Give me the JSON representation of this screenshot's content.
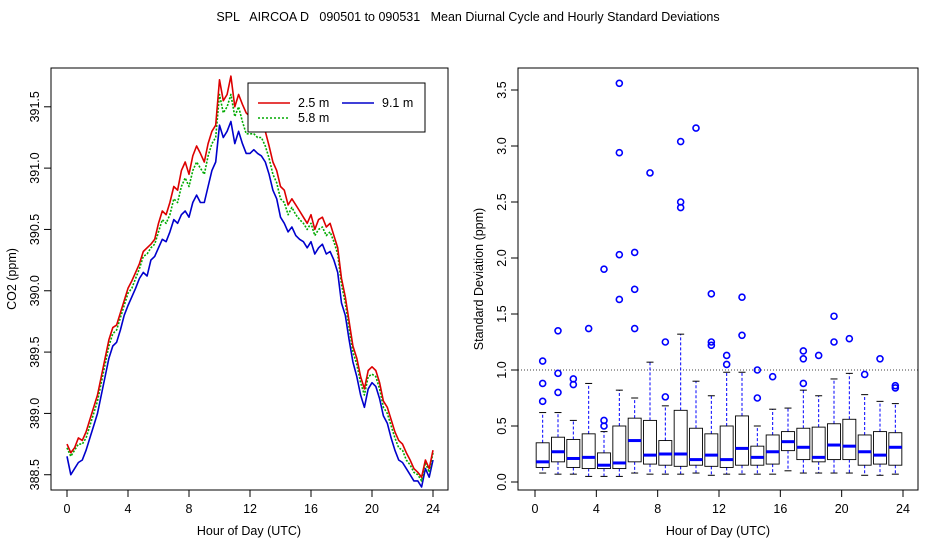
{
  "page_title": "SPL   AIRCOA D   090501 to 090531   Mean Diurnal Cycle and Hourly Standard Deviations",
  "chart_data": [
    {
      "type": "line",
      "xlabel": "Hour of Day (UTC)",
      "ylabel": "CO2 (ppm)",
      "xlim": [
        0,
        24
      ],
      "ylim": [
        388.4,
        391.8
      ],
      "xticks": [
        "0",
        "4",
        "8",
        "12",
        "16",
        "20",
        "24"
      ],
      "yticks": [
        "388.5",
        "389.0",
        "389.5",
        "390.0",
        "390.5",
        "391.0",
        "391.5"
      ],
      "legend_position": "top-right",
      "x": [
        0,
        0.25,
        0.5,
        0.75,
        1,
        1.25,
        1.5,
        1.75,
        2,
        2.25,
        2.5,
        2.75,
        3,
        3.25,
        3.5,
        3.75,
        4,
        4.25,
        4.5,
        4.75,
        5,
        5.25,
        5.5,
        5.75,
        6,
        6.25,
        6.5,
        6.75,
        7,
        7.25,
        7.5,
        7.75,
        8,
        8.25,
        8.5,
        8.75,
        9,
        9.25,
        9.5,
        9.75,
        10,
        10.25,
        10.5,
        10.75,
        11,
        11.25,
        11.5,
        11.75,
        12,
        12.25,
        12.5,
        12.75,
        13,
        13.25,
        13.5,
        13.75,
        14,
        14.25,
        14.5,
        14.75,
        15,
        15.25,
        15.5,
        15.75,
        16,
        16.25,
        16.5,
        16.75,
        17,
        17.25,
        17.5,
        17.75,
        18,
        18.25,
        18.5,
        18.75,
        19,
        19.25,
        19.5,
        19.75,
        20,
        20.25,
        20.5,
        20.75,
        21,
        21.25,
        21.5,
        21.75,
        22,
        22.25,
        22.5,
        22.75,
        23,
        23.25,
        23.5,
        23.75,
        24
      ],
      "series": [
        {
          "name": "2.5 m",
          "color": "#dd0000",
          "values": [
            388.75,
            388.68,
            388.72,
            388.8,
            388.78,
            388.85,
            388.95,
            389.05,
            389.15,
            389.3,
            389.45,
            389.6,
            389.7,
            389.72,
            389.82,
            389.92,
            390.02,
            390.08,
            390.15,
            390.22,
            390.32,
            390.35,
            390.38,
            390.42,
            390.55,
            390.65,
            390.62,
            390.72,
            390.85,
            390.82,
            390.98,
            391.05,
            390.95,
            391.1,
            391.18,
            391.12,
            391.05,
            391.2,
            391.3,
            391.35,
            391.72,
            391.55,
            391.6,
            391.75,
            391.5,
            391.6,
            391.52,
            391.45,
            391.42,
            391.45,
            391.4,
            391.38,
            391.3,
            391.18,
            391.05,
            390.98,
            390.85,
            390.82,
            390.7,
            390.75,
            390.7,
            390.65,
            390.6,
            390.55,
            390.62,
            390.5,
            390.58,
            390.6,
            390.52,
            390.55,
            390.45,
            390.35,
            390.1,
            389.95,
            389.75,
            389.55,
            389.45,
            389.3,
            389.2,
            389.35,
            389.38,
            389.35,
            389.25,
            389.1,
            389.05,
            388.95,
            388.85,
            388.78,
            388.75,
            388.68,
            388.62,
            388.55,
            388.52,
            388.48,
            388.62,
            388.55,
            388.7
          ]
        },
        {
          "name": "5.8 m",
          "color": "#00aa00",
          "dashed": true,
          "values": [
            388.72,
            388.65,
            388.7,
            388.75,
            388.75,
            388.8,
            388.9,
            389.0,
            389.1,
            389.25,
            389.4,
            389.55,
            389.65,
            389.68,
            389.78,
            389.88,
            389.98,
            390.02,
            390.1,
            390.18,
            390.28,
            390.3,
            390.35,
            390.38,
            390.48,
            390.58,
            390.55,
            390.62,
            390.75,
            390.72,
            390.85,
            390.92,
            390.85,
            390.98,
            391.05,
            391.0,
            390.95,
            391.1,
            391.2,
            391.25,
            391.6,
            391.45,
            391.5,
            391.6,
            391.42,
            391.5,
            391.38,
            391.28,
            391.28,
            391.28,
            391.25,
            391.25,
            391.18,
            391.08,
            390.95,
            390.88,
            390.75,
            390.72,
            390.62,
            390.68,
            390.62,
            390.58,
            390.55,
            390.5,
            390.55,
            390.45,
            390.5,
            390.52,
            390.45,
            390.48,
            390.4,
            390.3,
            390.05,
            389.9,
            389.7,
            389.5,
            389.4,
            389.25,
            389.15,
            389.3,
            389.32,
            389.3,
            389.2,
            389.05,
            389.0,
            388.9,
            388.8,
            388.72,
            388.7,
            388.62,
            388.58,
            388.52,
            388.5,
            388.45,
            388.6,
            388.52,
            388.68
          ]
        },
        {
          "name": "9.1 m",
          "color": "#0000cc",
          "values": [
            388.65,
            388.5,
            388.55,
            388.6,
            388.62,
            388.7,
            388.8,
            388.9,
            389.0,
            389.15,
            389.3,
            389.45,
            389.55,
            389.58,
            389.68,
            389.8,
            389.88,
            389.95,
            390.02,
            390.1,
            390.15,
            390.12,
            390.25,
            390.28,
            390.35,
            390.42,
            390.4,
            390.48,
            390.58,
            390.55,
            390.62,
            390.65,
            390.6,
            390.72,
            390.78,
            390.72,
            390.72,
            390.85,
            390.98,
            391.05,
            391.35,
            391.25,
            391.3,
            391.38,
            391.2,
            391.3,
            391.2,
            391.12,
            391.12,
            391.15,
            391.12,
            391.1,
            391.05,
            390.95,
            390.82,
            390.75,
            390.6,
            390.55,
            390.48,
            390.52,
            390.45,
            390.42,
            390.4,
            390.35,
            390.4,
            390.3,
            390.35,
            390.38,
            390.3,
            390.32,
            390.25,
            390.15,
            389.9,
            389.8,
            389.6,
            389.42,
            389.3,
            389.15,
            389.05,
            389.2,
            389.25,
            389.22,
            389.12,
            388.98,
            388.92,
            388.8,
            388.7,
            388.62,
            388.6,
            388.55,
            388.5,
            388.45,
            388.45,
            388.4,
            388.55,
            388.48,
            388.62
          ]
        }
      ]
    },
    {
      "type": "box",
      "xlabel": "Hour of Day (UTC)",
      "ylabel": "Standard Deviation (ppm)",
      "xlim": [
        0,
        24
      ],
      "ylim": [
        0,
        3.55
      ],
      "xticks": [
        "0",
        "4",
        "8",
        "12",
        "16",
        "20",
        "24"
      ],
      "yticks": [
        "0.0",
        "0.5",
        "1.0",
        "1.5",
        "2.0",
        "2.5",
        "3.0",
        "3.5"
      ],
      "reference_line": 1.0,
      "boxes": [
        {
          "hour": 0.5,
          "whislo": 0.08,
          "q1": 0.13,
          "med": 0.18,
          "q3": 0.35,
          "whishi": 0.62,
          "outliers": [
            0.72,
            0.88,
            1.08
          ]
        },
        {
          "hour": 1.5,
          "whislo": 0.07,
          "q1": 0.18,
          "med": 0.27,
          "q3": 0.4,
          "whishi": 0.62,
          "outliers": [
            0.8,
            0.97,
            1.35
          ]
        },
        {
          "hour": 2.5,
          "whislo": 0.07,
          "q1": 0.13,
          "med": 0.21,
          "q3": 0.38,
          "whishi": 0.55,
          "outliers": [
            0.87,
            0.92
          ]
        },
        {
          "hour": 3.5,
          "whislo": 0.05,
          "q1": 0.12,
          "med": 0.22,
          "q3": 0.43,
          "whishi": 0.88,
          "outliers": [
            1.37
          ]
        },
        {
          "hour": 4.5,
          "whislo": 0.05,
          "q1": 0.12,
          "med": 0.15,
          "q3": 0.26,
          "whishi": 0.45,
          "outliers": [
            0.5,
            0.55,
            1.9
          ]
        },
        {
          "hour": 5.5,
          "whislo": 0.05,
          "q1": 0.12,
          "med": 0.17,
          "q3": 0.5,
          "whishi": 0.82,
          "outliers": [
            1.63,
            2.03,
            2.94,
            3.56
          ]
        },
        {
          "hour": 6.5,
          "whislo": 0.08,
          "q1": 0.18,
          "med": 0.37,
          "q3": 0.57,
          "whishi": 0.75,
          "outliers": [
            1.37,
            1.72,
            2.05
          ]
        },
        {
          "hour": 7.5,
          "whislo": 0.07,
          "q1": 0.16,
          "med": 0.24,
          "q3": 0.55,
          "whishi": 1.07,
          "outliers": [
            2.76
          ]
        },
        {
          "hour": 8.5,
          "whislo": 0.07,
          "q1": 0.15,
          "med": 0.25,
          "q3": 0.37,
          "whishi": 0.68,
          "outliers": [
            0.76,
            1.25
          ]
        },
        {
          "hour": 9.5,
          "whislo": 0.07,
          "q1": 0.14,
          "med": 0.25,
          "q3": 0.64,
          "whishi": 1.32,
          "outliers": [
            2.45,
            2.5,
            3.04
          ]
        },
        {
          "hour": 10.5,
          "whislo": 0.08,
          "q1": 0.15,
          "med": 0.2,
          "q3": 0.48,
          "whishi": 0.9,
          "outliers": [
            3.16
          ]
        },
        {
          "hour": 11.5,
          "whislo": 0.06,
          "q1": 0.14,
          "med": 0.24,
          "q3": 0.43,
          "whishi": 0.77,
          "outliers": [
            1.22,
            1.25,
            1.68
          ]
        },
        {
          "hour": 12.5,
          "whislo": 0.07,
          "q1": 0.13,
          "med": 0.2,
          "q3": 0.5,
          "whishi": 0.98,
          "outliers": [
            1.05,
            1.13
          ]
        },
        {
          "hour": 13.5,
          "whislo": 0.07,
          "q1": 0.15,
          "med": 0.3,
          "q3": 0.59,
          "whishi": 0.98,
          "outliers": [
            1.31,
            1.65
          ]
        },
        {
          "hour": 14.5,
          "whislo": 0.07,
          "q1": 0.15,
          "med": 0.22,
          "q3": 0.32,
          "whishi": 0.5,
          "outliers": [
            0.75,
            1.0
          ]
        },
        {
          "hour": 15.5,
          "whislo": 0.07,
          "q1": 0.16,
          "med": 0.27,
          "q3": 0.42,
          "whishi": 0.65,
          "outliers": [
            0.94
          ]
        },
        {
          "hour": 16.5,
          "whislo": 0.1,
          "q1": 0.28,
          "med": 0.36,
          "q3": 0.45,
          "whishi": 0.66,
          "outliers": []
        },
        {
          "hour": 17.5,
          "whislo": 0.08,
          "q1": 0.2,
          "med": 0.31,
          "q3": 0.48,
          "whishi": 0.82,
          "outliers": [
            0.88,
            1.1,
            1.17
          ]
        },
        {
          "hour": 18.5,
          "whislo": 0.08,
          "q1": 0.18,
          "med": 0.22,
          "q3": 0.49,
          "whishi": 0.77,
          "outliers": [
            1.13
          ]
        },
        {
          "hour": 19.5,
          "whislo": 0.08,
          "q1": 0.2,
          "med": 0.33,
          "q3": 0.52,
          "whishi": 0.92,
          "outliers": [
            1.25,
            1.48
          ]
        },
        {
          "hour": 20.5,
          "whislo": 0.08,
          "q1": 0.2,
          "med": 0.32,
          "q3": 0.56,
          "whishi": 0.97,
          "outliers": [
            1.28
          ]
        },
        {
          "hour": 21.5,
          "whislo": 0.06,
          "q1": 0.15,
          "med": 0.27,
          "q3": 0.42,
          "whishi": 0.78,
          "outliers": [
            0.96
          ]
        },
        {
          "hour": 22.5,
          "whislo": 0.06,
          "q1": 0.16,
          "med": 0.24,
          "q3": 0.45,
          "whishi": 0.72,
          "outliers": [
            1.1
          ]
        },
        {
          "hour": 23.5,
          "whislo": 0.07,
          "q1": 0.15,
          "med": 0.31,
          "q3": 0.44,
          "whishi": 0.7,
          "outliers": [
            0.84,
            0.86
          ]
        }
      ]
    }
  ]
}
